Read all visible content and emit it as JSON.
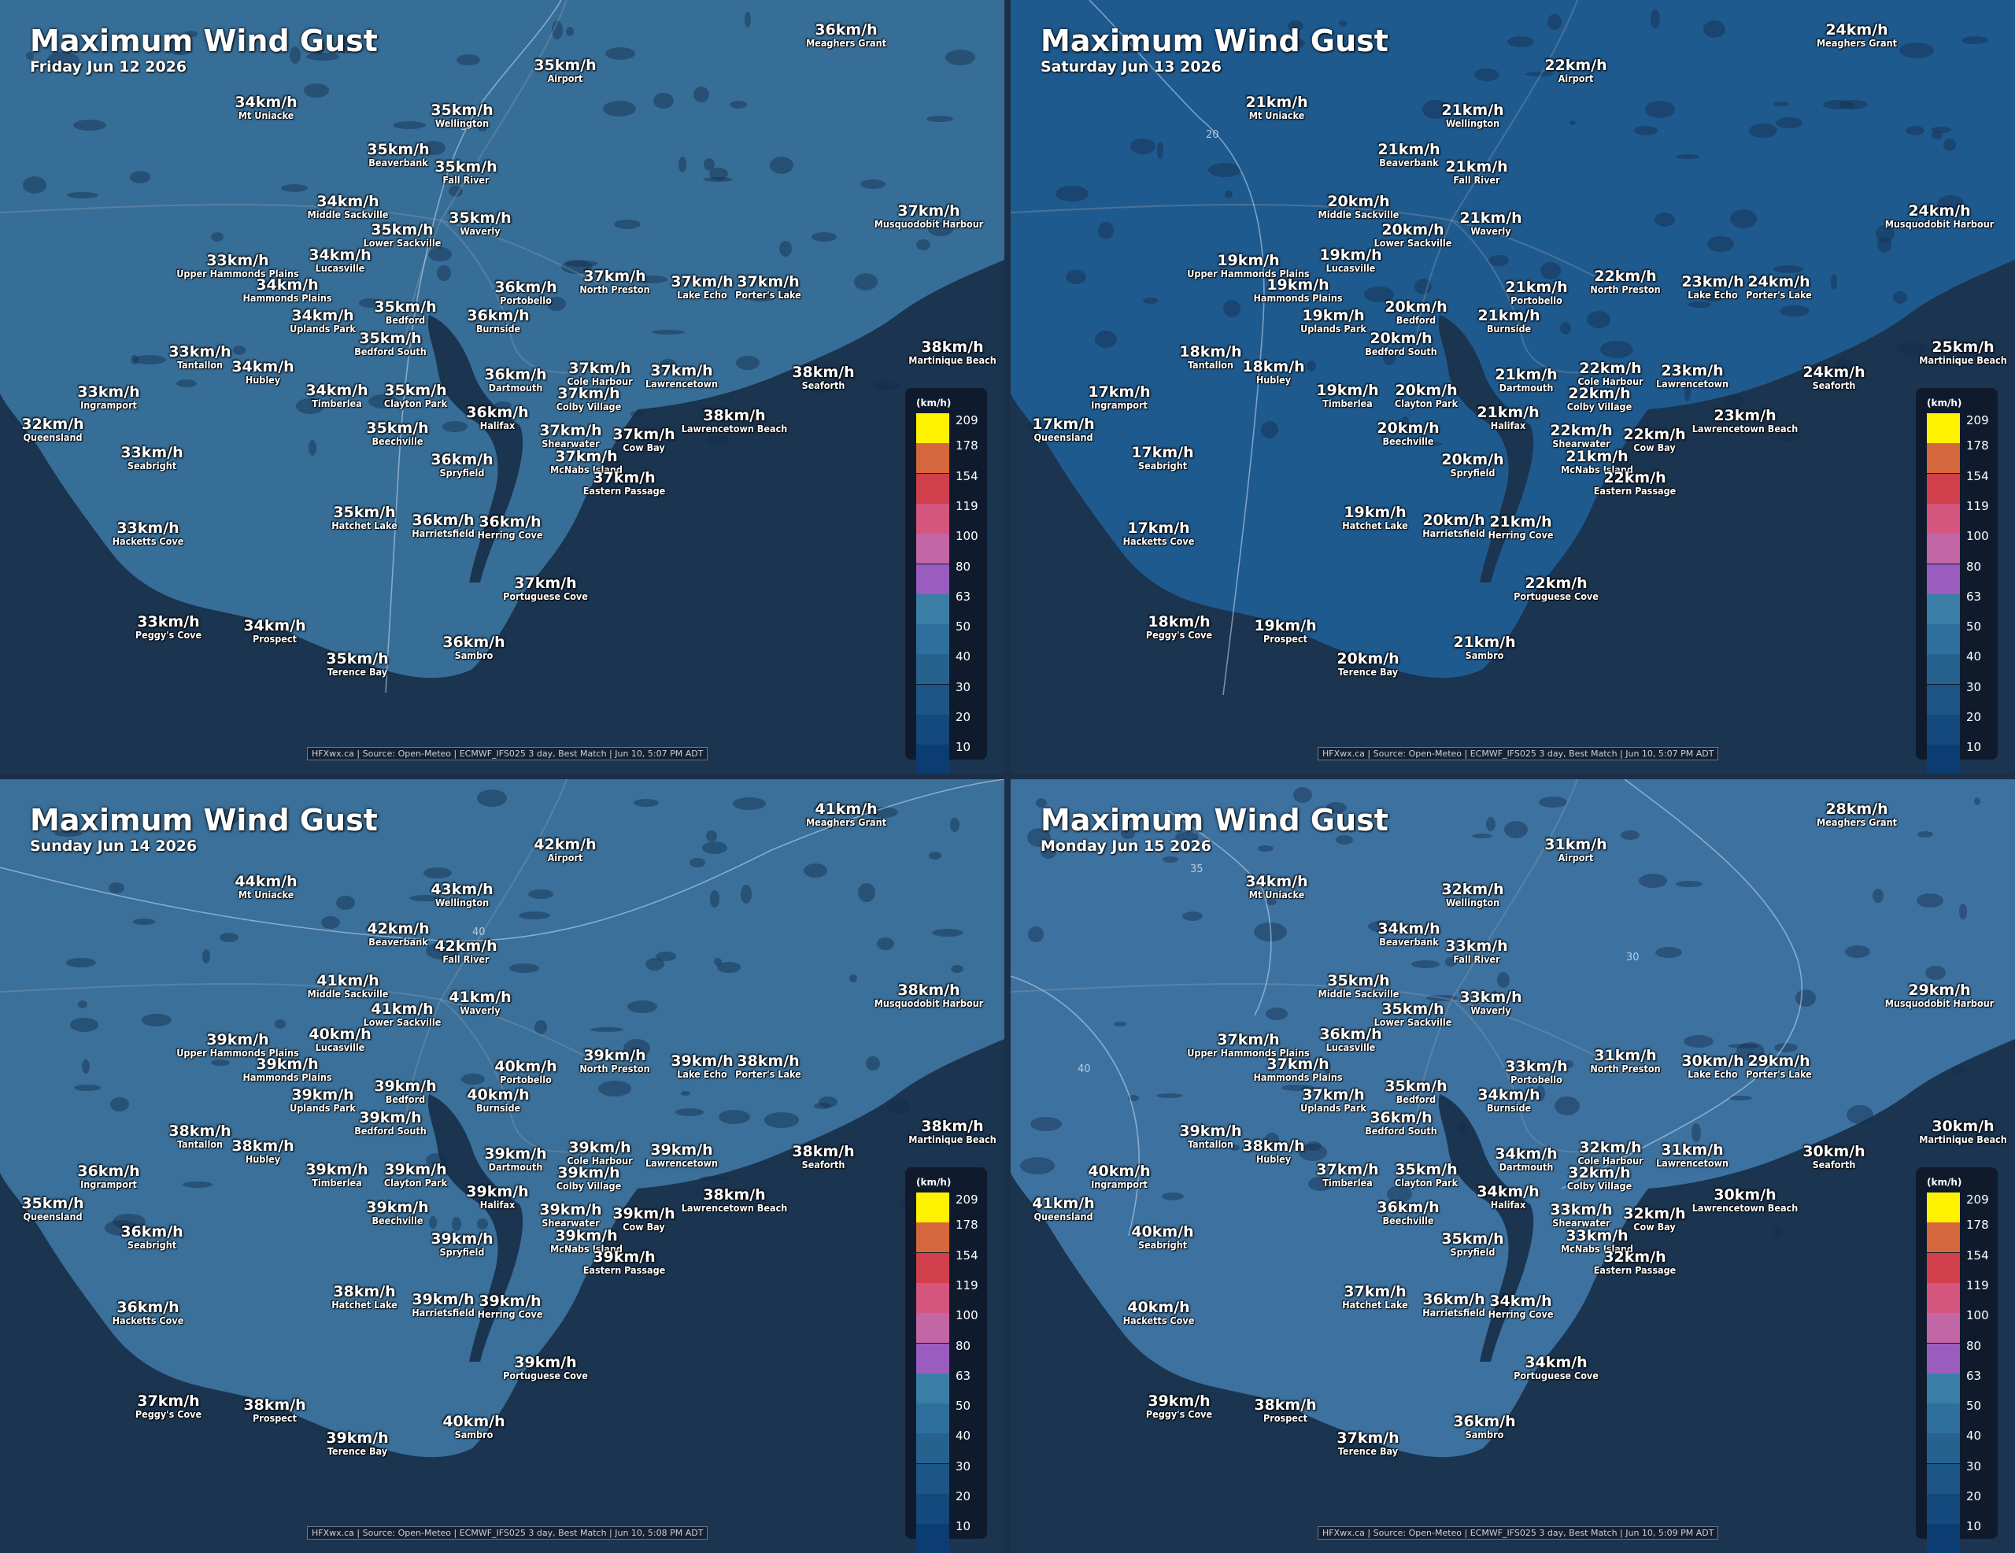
{
  "title": "Maximum Wind Gust",
  "legend": {
    "unit": "(km/h)",
    "labels": [
      "209",
      "178",
      "154",
      "119",
      "100",
      "80",
      "63",
      "50",
      "40",
      "30",
      "20",
      "10"
    ],
    "colors": [
      "#fff200",
      "#d4683c",
      "#d13f4c",
      "#d4567f",
      "#c266a6",
      "#9b5cc0",
      "#3a7ea6",
      "#2f6f9d",
      "#27628f",
      "#1d5587",
      "#14497d",
      "#0b3d73"
    ]
  },
  "locations": [
    "Meaghers Grant",
    "Airport",
    "Mt Uniacke",
    "Wellington",
    "Beaverbank",
    "Fall River",
    "Middle Sackville",
    "Lower Sackville",
    "Waverly",
    "Musquodobit Harbour",
    "Upper Hammonds Plains",
    "Lucasville",
    "Hammonds Plains",
    "Portobello",
    "North Preston",
    "Lake Echo",
    "Porter's Lake",
    "Bedford",
    "Uplands Park",
    "Burnside",
    "Bedford South",
    "Martinique Beach",
    "Tantallon",
    "Hubley",
    "Dartmouth",
    "Cole Harbour",
    "Lawrencetown",
    "Seaforth",
    "Ingramport",
    "Timberlea",
    "Clayton Park",
    "Colby Village",
    "Queensland",
    "Halifax",
    "Lawrencetown Beach",
    "Beechville",
    "Shearwater",
    "Cow Bay",
    "Seabright",
    "McNabs Island",
    "Spryfield",
    "Eastern Passage",
    "Hatchet Lake",
    "Harrietsfield",
    "Herring Cove",
    "Hacketts Cove",
    "Portuguese Cove",
    "Peggy's Cove",
    "Prospect",
    "Terence Bay",
    "Sambro"
  ],
  "panels": [
    {
      "date": "Friday Jun 12 2026",
      "credit": "HFXwx.ca | Source: Open-Meteo | ECMWF_IFS025 3 day, Best Match | Jun 10, 5:07 PM ADT",
      "contours": [
        "35"
      ],
      "values": [
        "36km/h",
        "35km/h",
        "34km/h",
        "35km/h",
        "35km/h",
        "35km/h",
        "34km/h",
        "35km/h",
        "35km/h",
        "37km/h",
        "33km/h",
        "34km/h",
        "34km/h",
        "36km/h",
        "37km/h",
        "37km/h",
        "37km/h",
        "35km/h",
        "34km/h",
        "36km/h",
        "35km/h",
        "38km/h",
        "33km/h",
        "34km/h",
        "36km/h",
        "37km/h",
        "37km/h",
        "38km/h",
        "33km/h",
        "34km/h",
        "35km/h",
        "37km/h",
        "32km/h",
        "36km/h",
        "38km/h",
        "35km/h",
        "37km/h",
        "37km/h",
        "33km/h",
        "37km/h",
        "36km/h",
        "37km/h",
        "35km/h",
        "36km/h",
        "36km/h",
        "33km/h",
        "37km/h",
        "33km/h",
        "34km/h",
        "35km/h",
        "36km/h"
      ]
    },
    {
      "date": "Saturday Jun 13 2026",
      "credit": "HFXwx.ca | Source: Open-Meteo | ECMWF_IFS025 3 day, Best Match | Jun 10, 5:07 PM ADT",
      "contours": [
        "20"
      ],
      "values": [
        "24km/h",
        "22km/h",
        "21km/h",
        "21km/h",
        "21km/h",
        "21km/h",
        "20km/h",
        "20km/h",
        "21km/h",
        "24km/h",
        "19km/h",
        "19km/h",
        "19km/h",
        "21km/h",
        "22km/h",
        "23km/h",
        "24km/h",
        "20km/h",
        "19km/h",
        "21km/h",
        "20km/h",
        "25km/h",
        "18km/h",
        "18km/h",
        "21km/h",
        "22km/h",
        "23km/h",
        "24km/h",
        "17km/h",
        "19km/h",
        "20km/h",
        "22km/h",
        "17km/h",
        "21km/h",
        "23km/h",
        "20km/h",
        "22km/h",
        "22km/h",
        "17km/h",
        "21km/h",
        "20km/h",
        "22km/h",
        "19km/h",
        "20km/h",
        "21km/h",
        "17km/h",
        "22km/h",
        "18km/h",
        "19km/h",
        "20km/h",
        "21km/h"
      ]
    },
    {
      "date": "Sunday Jun 14 2026",
      "credit": "HFXwx.ca | Source: Open-Meteo | ECMWF_IFS025 3 day, Best Match | Jun 10, 5:08 PM ADT",
      "contours": [
        "40"
      ],
      "values": [
        "41km/h",
        "42km/h",
        "44km/h",
        "43km/h",
        "42km/h",
        "42km/h",
        "41km/h",
        "41km/h",
        "41km/h",
        "38km/h",
        "39km/h",
        "40km/h",
        "39km/h",
        "40km/h",
        "39km/h",
        "39km/h",
        "38km/h",
        "39km/h",
        "39km/h",
        "40km/h",
        "39km/h",
        "38km/h",
        "38km/h",
        "38km/h",
        "39km/h",
        "39km/h",
        "39km/h",
        "38km/h",
        "36km/h",
        "39km/h",
        "39km/h",
        "39km/h",
        "35km/h",
        "39km/h",
        "38km/h",
        "39km/h",
        "39km/h",
        "39km/h",
        "36km/h",
        "39km/h",
        "39km/h",
        "39km/h",
        "38km/h",
        "39km/h",
        "39km/h",
        "36km/h",
        "39km/h",
        "37km/h",
        "38km/h",
        "39km/h",
        "40km/h"
      ]
    },
    {
      "date": "Monday Jun 15 2026",
      "credit": "HFXwx.ca | Source: Open-Meteo | ECMWF_IFS025 3 day, Best Match | Jun 10, 5:09 PM ADT",
      "contours": [
        "35",
        "30",
        "40"
      ],
      "values": [
        "28km/h",
        "31km/h",
        "34km/h",
        "32km/h",
        "34km/h",
        "33km/h",
        "35km/h",
        "35km/h",
        "33km/h",
        "29km/h",
        "37km/h",
        "36km/h",
        "37km/h",
        "33km/h",
        "31km/h",
        "30km/h",
        "29km/h",
        "35km/h",
        "37km/h",
        "34km/h",
        "36km/h",
        "30km/h",
        "39km/h",
        "38km/h",
        "34km/h",
        "32km/h",
        "31km/h",
        "30km/h",
        "40km/h",
        "37km/h",
        "35km/h",
        "32km/h",
        "41km/h",
        "34km/h",
        "30km/h",
        "36km/h",
        "33km/h",
        "32km/h",
        "40km/h",
        "33km/h",
        "35km/h",
        "32km/h",
        "37km/h",
        "36km/h",
        "34km/h",
        "40km/h",
        "34km/h",
        "39km/h",
        "38km/h",
        "37km/h",
        "36km/h"
      ]
    }
  ]
}
